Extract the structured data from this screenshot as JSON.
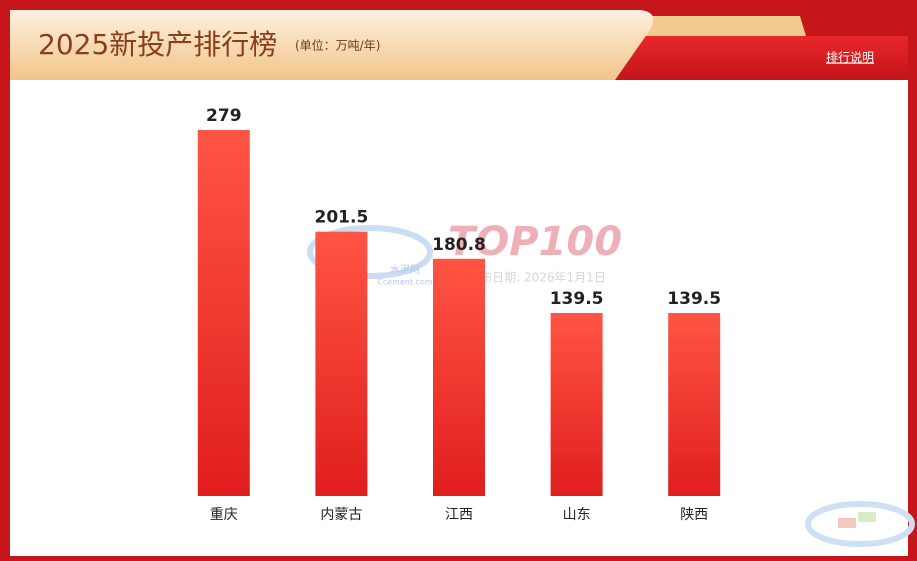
{
  "chart_data": {
    "type": "bar",
    "title": "2025新投产排行榜",
    "subtitle": "(单位：万吨/年)",
    "link": "排行说明",
    "categories": [
      "重庆",
      "内蒙古",
      "江西",
      "山东",
      "陕西"
    ],
    "values": [
      279,
      201.5,
      180.8,
      139.5,
      139.5
    ],
    "color": "#f0352c",
    "watermark": {
      "logo": "TOP100",
      "date": "发布日期: 2026年1月1日",
      "brand": "水泥网",
      "site": "Ccement.com"
    }
  }
}
